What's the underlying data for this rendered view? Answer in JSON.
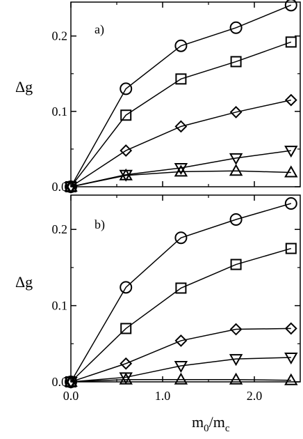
{
  "xlabel_main": "m",
  "xlabel_sub1": "0",
  "xlabel_slash": "/m",
  "xlabel_sub2": "c",
  "chart_data": [
    {
      "type": "line",
      "panel_label": "a)",
      "ylabel": "Δg",
      "xlabel": "m0/mc",
      "xlim": [
        0,
        2.5
      ],
      "ylim": [
        0,
        0.245
      ],
      "x": [
        0.0,
        0.6,
        1.2,
        1.8,
        2.4
      ],
      "x_ticks": [
        0.0,
        1.0,
        2.0
      ],
      "x_tick_labels": [
        "0.0",
        "1.0",
        "2.0"
      ],
      "y_ticks": [
        0.0,
        0.1,
        0.2
      ],
      "y_tick_labels": [
        "0.0",
        "0.1",
        "0.2"
      ],
      "grid": false,
      "series": [
        {
          "marker": "circle",
          "values": [
            0.0,
            0.13,
            0.187,
            0.211,
            0.241
          ]
        },
        {
          "marker": "square",
          "values": [
            0.0,
            0.095,
            0.143,
            0.166,
            0.192
          ]
        },
        {
          "marker": "diamond",
          "values": [
            0.0,
            0.048,
            0.08,
            0.099,
            0.115
          ]
        },
        {
          "marker": "triangle-down",
          "values": [
            0.0,
            0.016,
            0.025,
            0.038,
            0.048
          ]
        },
        {
          "marker": "triangle-up",
          "values": [
            0.0,
            0.015,
            0.02,
            0.021,
            0.019
          ]
        }
      ]
    },
    {
      "type": "line",
      "panel_label": "b)",
      "ylabel": "Δg",
      "xlabel": "m0/mc",
      "xlim": [
        0,
        2.5
      ],
      "ylim": [
        0,
        0.245
      ],
      "x": [
        0.0,
        0.6,
        1.2,
        1.8,
        2.4
      ],
      "x_ticks": [
        0.0,
        1.0,
        2.0
      ],
      "x_tick_labels": [
        "0.0",
        "1.0",
        "2.0"
      ],
      "y_ticks": [
        0.0,
        0.1,
        0.2
      ],
      "y_tick_labels": [
        "0.0",
        "0.1",
        "0.2"
      ],
      "grid": false,
      "series": [
        {
          "marker": "circle",
          "values": [
            0.0,
            0.124,
            0.189,
            0.213,
            0.234
          ]
        },
        {
          "marker": "square",
          "values": [
            0.0,
            0.07,
            0.123,
            0.154,
            0.175
          ]
        },
        {
          "marker": "diamond",
          "values": [
            0.0,
            0.024,
            0.054,
            0.069,
            0.07
          ]
        },
        {
          "marker": "triangle-down",
          "values": [
            0.0,
            0.006,
            0.021,
            0.03,
            0.032
          ]
        },
        {
          "marker": "triangle-up",
          "values": [
            0.0,
            0.003,
            0.003,
            0.003,
            0.002
          ]
        }
      ]
    }
  ]
}
